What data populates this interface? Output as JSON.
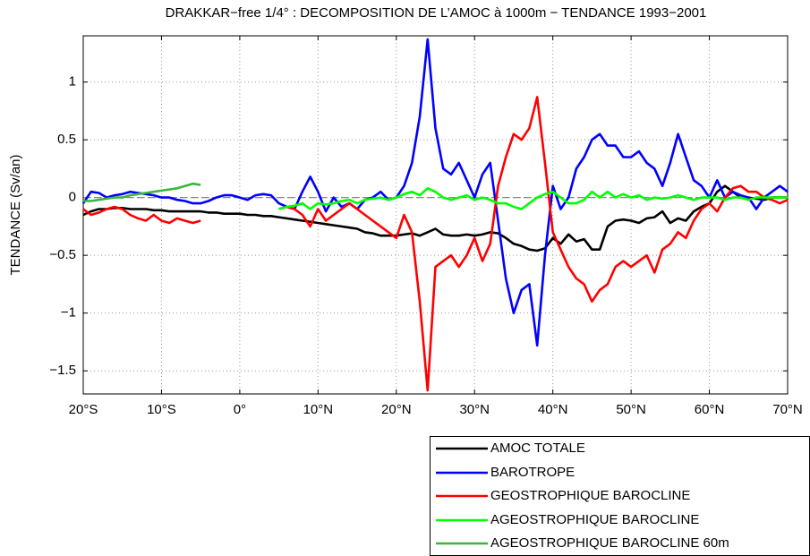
{
  "chart_data": {
    "type": "line",
    "title": "DRAKKAR−free 1/4° : DECOMPOSITION DE L’AMOC à 1000m − TENDANCE 1993−2001",
    "y_label": "TENDANCE (Sv/an)",
    "x": [
      -20,
      -19,
      -18,
      -17,
      -16,
      -15,
      -14,
      -13,
      -12,
      -11,
      -10,
      -9,
      -8,
      -7,
      -6,
      -5,
      -4,
      -3,
      -2,
      -1,
      0,
      1,
      2,
      3,
      4,
      5,
      6,
      7,
      8,
      9,
      10,
      11,
      12,
      13,
      14,
      15,
      16,
      17,
      18,
      19,
      20,
      21,
      22,
      23,
      24,
      25,
      26,
      27,
      28,
      29,
      30,
      31,
      32,
      33,
      34,
      35,
      36,
      37,
      38,
      39,
      40,
      41,
      42,
      43,
      44,
      45,
      46,
      47,
      48,
      49,
      50,
      51,
      52,
      53,
      54,
      55,
      56,
      57,
      58,
      59,
      60,
      61,
      62,
      63,
      64,
      65,
      66,
      67,
      68,
      69,
      70
    ],
    "series": [
      {
        "name": "AMOC TOTALE",
        "color": "#000000",
        "values": [
          -0.15,
          -0.12,
          -0.1,
          -0.1,
          -0.09,
          -0.09,
          -0.1,
          -0.1,
          -0.1,
          -0.11,
          -0.11,
          -0.12,
          -0.12,
          -0.12,
          -0.12,
          -0.12,
          -0.13,
          -0.13,
          -0.14,
          -0.14,
          -0.14,
          -0.15,
          -0.15,
          -0.16,
          -0.16,
          -0.17,
          -0.18,
          -0.19,
          -0.2,
          -0.21,
          -0.22,
          -0.23,
          -0.24,
          -0.25,
          -0.26,
          -0.27,
          -0.3,
          -0.31,
          -0.33,
          -0.33,
          -0.33,
          -0.32,
          -0.31,
          -0.33,
          -0.3,
          -0.27,
          -0.32,
          -0.33,
          -0.33,
          -0.32,
          -0.33,
          -0.32,
          -0.3,
          -0.31,
          -0.35,
          -0.4,
          -0.42,
          -0.45,
          -0.46,
          -0.44,
          -0.35,
          -0.4,
          -0.32,
          -0.38,
          -0.36,
          -0.45,
          -0.45,
          -0.25,
          -0.2,
          -0.19,
          -0.2,
          -0.22,
          -0.18,
          -0.17,
          -0.12,
          -0.22,
          -0.18,
          -0.2,
          -0.12,
          -0.08,
          -0.05,
          0.05,
          0.1,
          0.05,
          0,
          0,
          -0.01,
          -0.02,
          0,
          0,
          0
        ]
      },
      {
        "name": "BAROTROPE",
        "color": "#0000ff",
        "values": [
          -0.05,
          0.05,
          0.04,
          0,
          0.02,
          0.03,
          0.05,
          0.04,
          0.03,
          0.02,
          0,
          0,
          -0.02,
          -0.03,
          -0.05,
          -0.05,
          -0.03,
          0,
          0.02,
          0.02,
          0,
          -0.02,
          0.02,
          0.03,
          0.02,
          -0.05,
          -0.08,
          -0.1,
          0.05,
          0.18,
          0.05,
          -0.12,
          0,
          -0.08,
          -0.05,
          -0.1,
          -0.02,
          0,
          0.05,
          -0.02,
          0,
          0.1,
          0.3,
          0.7,
          1.37,
          0.6,
          0.25,
          0.2,
          0.3,
          0.15,
          0,
          0.2,
          0.3,
          -0.2,
          -0.7,
          -1.0,
          -0.8,
          -0.75,
          -1.28,
          -0.5,
          0.1,
          -0.1,
          0,
          0.25,
          0.35,
          0.5,
          0.55,
          0.45,
          0.45,
          0.35,
          0.35,
          0.4,
          0.3,
          0.25,
          0.1,
          0.3,
          0.55,
          0.35,
          0.15,
          0.1,
          0,
          0.15,
          0,
          0.05,
          0.02,
          0,
          -0.1,
          0,
          0.05,
          0.1,
          0.05
        ]
      },
      {
        "name": "GEOSTROPHIQUE BAROCLINE",
        "color": "#ff0000",
        "values": [
          -0.1,
          -0.15,
          -0.13,
          -0.1,
          -0.08,
          -0.1,
          -0.15,
          -0.18,
          -0.2,
          -0.15,
          -0.2,
          -0.22,
          -0.18,
          -0.2,
          -0.22,
          -0.2,
          null,
          null,
          null,
          null,
          null,
          null,
          null,
          null,
          null,
          -0.1,
          -0.08,
          -0.1,
          -0.15,
          -0.25,
          -0.1,
          -0.2,
          -0.15,
          -0.1,
          -0.05,
          -0.1,
          -0.15,
          -0.2,
          -0.25,
          -0.3,
          -0.35,
          -0.15,
          -0.3,
          -0.9,
          -1.67,
          -0.6,
          -0.55,
          -0.5,
          -0.6,
          -0.5,
          -0.35,
          -0.55,
          -0.4,
          0.1,
          0.35,
          0.55,
          0.5,
          0.6,
          0.87,
          0.3,
          -0.3,
          -0.45,
          -0.6,
          -0.7,
          -0.75,
          -0.9,
          -0.8,
          -0.75,
          -0.6,
          -0.55,
          -0.6,
          -0.55,
          -0.5,
          -0.65,
          -0.45,
          -0.4,
          -0.3,
          -0.35,
          -0.2,
          -0.1,
          -0.05,
          -0.12,
          0,
          0.08,
          0.1,
          0.05,
          0.05,
          0,
          -0.02,
          -0.05,
          -0.02
        ]
      },
      {
        "name": "AGEOSTROPHIQUE BAROCLINE",
        "color": "#00ff00",
        "values": [
          null,
          null,
          null,
          null,
          null,
          null,
          null,
          null,
          null,
          null,
          null,
          null,
          null,
          null,
          null,
          null,
          null,
          null,
          null,
          null,
          null,
          null,
          null,
          null,
          null,
          -0.1,
          -0.08,
          -0.07,
          -0.05,
          -0.1,
          -0.05,
          -0.06,
          -0.05,
          -0.03,
          -0.02,
          -0.05,
          -0.02,
          -0.01,
          0,
          -0.02,
          0,
          0.03,
          0.05,
          0.02,
          0.08,
          0.05,
          0,
          -0.02,
          0,
          0.02,
          -0.02,
          0,
          -0.02,
          -0.05,
          -0.05,
          -0.08,
          -0.1,
          -0.05,
          0,
          0.03,
          0.05,
          0,
          -0.05,
          -0.05,
          -0.02,
          0.05,
          0,
          0.05,
          0,
          0.03,
          0,
          0.02,
          -0.02,
          0,
          -0.01,
          0,
          0.02,
          0,
          -0.02,
          0,
          0,
          0,
          -0.02,
          0,
          0,
          -0.02,
          0,
          0,
          0,
          0,
          0
        ]
      },
      {
        "name": "AGEOSTROPHIQUE BAROCLINE 60m",
        "color": "#3cb43c",
        "values": [
          -0.03,
          -0.03,
          -0.02,
          -0.01,
          0,
          0,
          0.02,
          0.03,
          0.04,
          0.05,
          0.06,
          0.07,
          0.08,
          0.1,
          0.12,
          0.11,
          null,
          null,
          null,
          null,
          null,
          null,
          null,
          null,
          null,
          null,
          null,
          null,
          null,
          null,
          null,
          null,
          null,
          null,
          null,
          null,
          null,
          null,
          null,
          null,
          null,
          null,
          null,
          null,
          null,
          null,
          null,
          null,
          null,
          null,
          null,
          null,
          null,
          null,
          null,
          null,
          null,
          null,
          null,
          null,
          null,
          null,
          null,
          null,
          null,
          null,
          null,
          null,
          null,
          null,
          null,
          null,
          null,
          null,
          null,
          null,
          null,
          null,
          null,
          null,
          null,
          null,
          null,
          null,
          null,
          null,
          null,
          null,
          null,
          null,
          null
        ]
      }
    ],
    "xlim": [
      -20,
      70
    ],
    "xticks": [
      {
        "value": -20,
        "label": "20°S"
      },
      {
        "value": -10,
        "label": "10°S"
      },
      {
        "value": 0,
        "label": "0°"
      },
      {
        "value": 10,
        "label": "10°N"
      },
      {
        "value": 20,
        "label": "20°N"
      },
      {
        "value": 30,
        "label": "30°N"
      },
      {
        "value": 40,
        "label": "40°N"
      },
      {
        "value": 50,
        "label": "50°N"
      },
      {
        "value": 60,
        "label": "60°N"
      },
      {
        "value": 70,
        "label": "70°N"
      }
    ],
    "ylim": [
      -1.7,
      1.4
    ],
    "yticks": [
      {
        "value": -1.5,
        "label": "−1.5"
      },
      {
        "value": -1,
        "label": "−1"
      },
      {
        "value": -0.5,
        "label": "−0.5"
      },
      0,
      0.5,
      1
    ],
    "grid": true
  }
}
